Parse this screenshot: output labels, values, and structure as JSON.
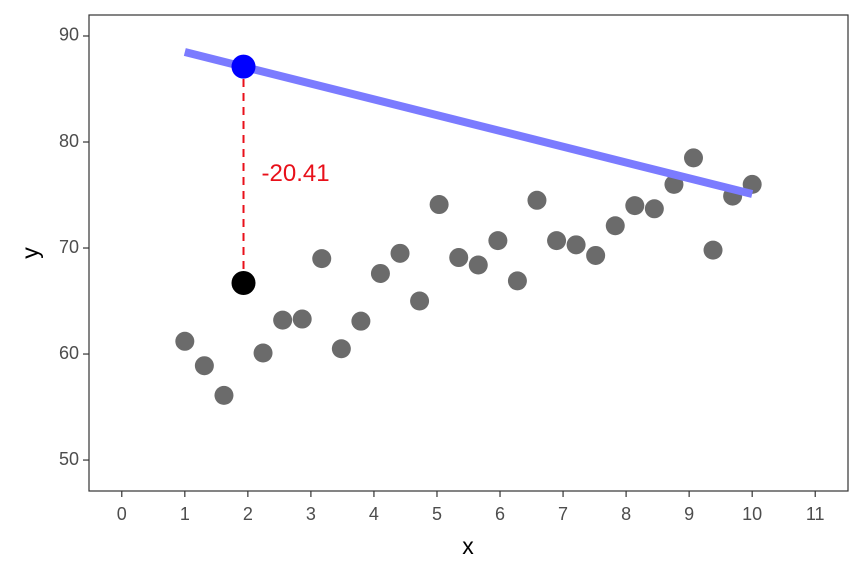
{
  "chart_data": {
    "type": "scatter",
    "x_label": "x",
    "y_label": "y",
    "x": [
      1,
      1.31,
      1.621,
      2.241,
      2.552,
      2.862,
      3.172,
      3.483,
      3.793,
      4.103,
      4.414,
      4.724,
      5.034,
      5.345,
      5.655,
      5.966,
      6.276,
      6.586,
      6.897,
      7.207,
      7.517,
      7.828,
      8.138,
      8.448,
      8.759,
      9.069,
      9.379,
      9.69,
      10
    ],
    "series": [
      {
        "color": "#6b6b6b",
        "values": [
          61.2,
          58.9,
          56.1,
          60.1,
          63.2,
          63.3,
          69.0,
          60.5,
          63.1,
          67.6,
          69.5,
          65.0,
          74.1,
          69.1,
          68.4,
          70.7,
          66.9,
          74.5,
          70.7,
          70.3,
          69.3,
          72.1,
          74.0,
          73.7,
          76.0,
          78.5,
          69.8,
          74.9,
          76.0
        ]
      }
    ],
    "observed_point": {
      "x": 1.931,
      "y": 66.7,
      "color": "#000000"
    },
    "fitted_point": {
      "x": 1.931,
      "y": 87.11,
      "color": "#0000ff"
    },
    "fit_line": {
      "x": [
        1,
        10
      ],
      "y": [
        88.49,
        75.09
      ],
      "color": "#7b7bff"
    },
    "residual": {
      "text": "-20.41",
      "color": "#e8101a"
    },
    "xlim": [
      -0.52,
      11.52
    ],
    "ylim": [
      47.08,
      91.98
    ],
    "xticks": [
      0,
      1,
      2,
      3,
      4,
      5,
      6,
      7,
      8,
      9,
      10,
      11
    ],
    "yticks": [
      50,
      60,
      70,
      80,
      90
    ]
  }
}
